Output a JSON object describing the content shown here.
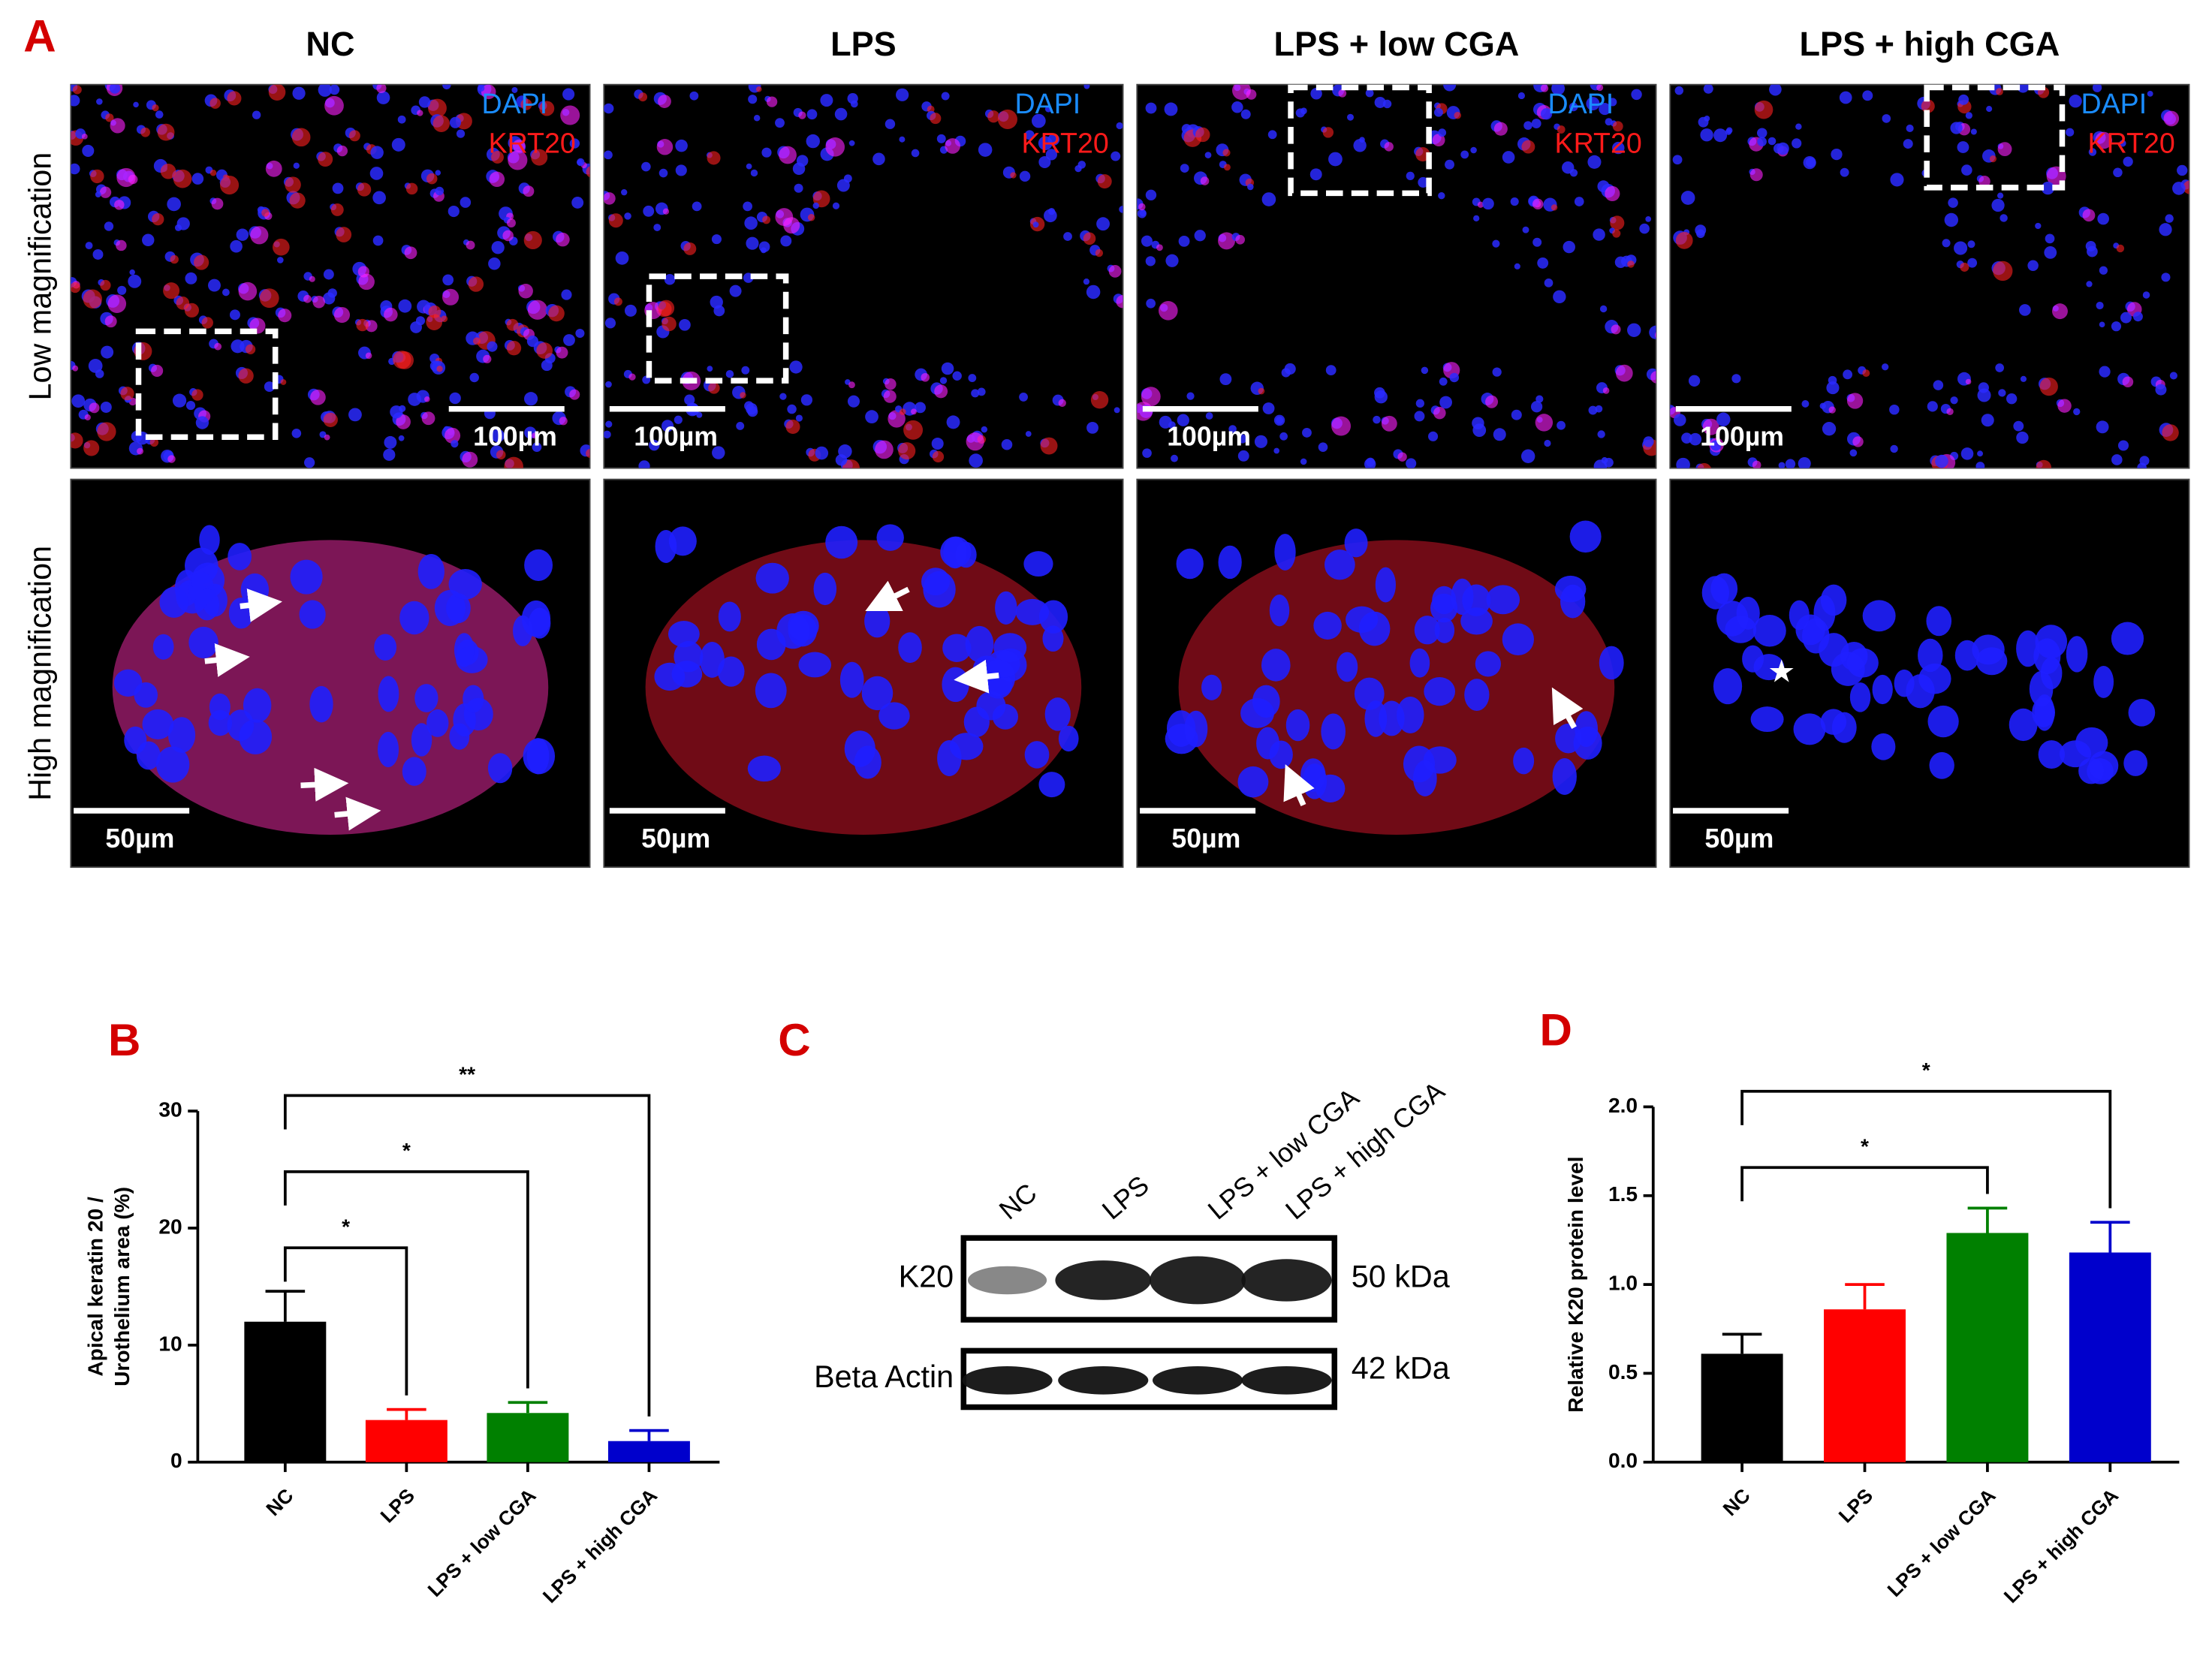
{
  "panel_a": {
    "label": "A",
    "columns": [
      "NC",
      "LPS",
      "LPS + low CGA",
      "LPS + high CGA"
    ],
    "rows": [
      "Low magnification",
      "High magnification"
    ],
    "channels": [
      "DAPI",
      "KRT20"
    ],
    "scale_bars": [
      "100µm",
      "50µm"
    ]
  },
  "panel_c": {
    "label": "C",
    "lanes": [
      "NC",
      "LPS",
      "LPS + low CGA",
      "LPS + high CGA"
    ],
    "rows": [
      {
        "name": "K20",
        "size": "50 kDa"
      },
      {
        "name": "Beta Actin",
        "size": "42 kDa"
      }
    ]
  },
  "chart_data": [
    {
      "type": "bar",
      "panel": "B",
      "ylabel": [
        "Apical keratin 20 /",
        "Urothelium area (%)"
      ],
      "categories": [
        "NC",
        "LPS",
        "LPS + low CGA",
        "LPS + high CGA"
      ],
      "values": [
        12,
        3.6,
        4.2,
        1.8
      ],
      "errors": [
        2.6,
        0.9,
        0.9,
        0.9
      ],
      "colors": [
        "#000000",
        "#ff0000",
        "#008000",
        "#0000cc"
      ],
      "ylim": [
        0,
        30
      ],
      "yticks": [
        0,
        10,
        20,
        30
      ],
      "grid": false,
      "comparisons": [
        {
          "groups": [
            0,
            1
          ],
          "label": "*"
        },
        {
          "groups": [
            0,
            2
          ],
          "label": "*"
        },
        {
          "groups": [
            0,
            3
          ],
          "label": "**"
        }
      ]
    },
    {
      "type": "bar",
      "panel": "D",
      "ylabel": [
        "Relative K20 protein level"
      ],
      "categories": [
        "NC",
        "LPS",
        "LPS + low CGA",
        "LPS + high CGA"
      ],
      "values": [
        0.61,
        0.86,
        1.29,
        1.18
      ],
      "errors": [
        0.11,
        0.14,
        0.14,
        0.17
      ],
      "colors": [
        "#000000",
        "#ff0000",
        "#008000",
        "#0000cc"
      ],
      "ylim": [
        0,
        2
      ],
      "grid": false,
      "yticks": [
        {
          "value": 0,
          "label": "0.0"
        },
        {
          "value": 0.5,
          "label": "0.5"
        },
        {
          "value": 1,
          "label": "1.0"
        },
        {
          "value": 1.5,
          "label": "1.5"
        },
        {
          "value": 2,
          "label": "2.0"
        }
      ],
      "comparisons": [
        {
          "groups": [
            0,
            2
          ],
          "label": "*"
        },
        {
          "groups": [
            0,
            3
          ],
          "label": "*"
        }
      ]
    }
  ]
}
